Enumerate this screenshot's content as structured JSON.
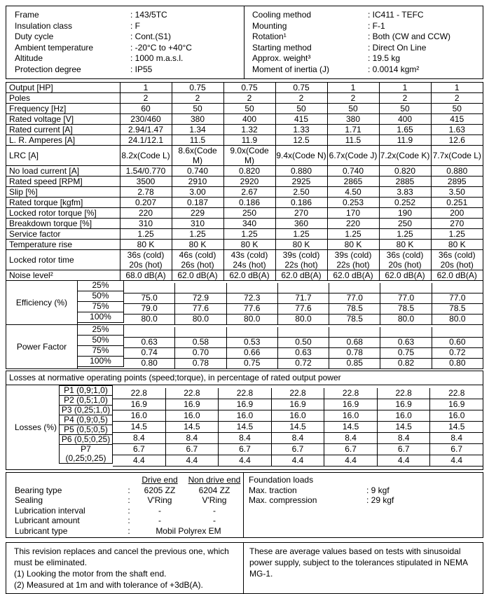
{
  "info_top": {
    "left": [
      {
        "label": "Frame",
        "value": ": 143/5TC"
      },
      {
        "label": "Insulation class",
        "value": ": F"
      },
      {
        "label": "Duty cycle",
        "value": ": Cont.(S1)"
      },
      {
        "label": "Ambient temperature",
        "value": ": -20°C to +40°C"
      },
      {
        "label": "Altitude",
        "value": ": 1000 m.a.s.l."
      },
      {
        "label": "Protection degree",
        "value": ": IP55"
      }
    ],
    "right": [
      {
        "label": "Cooling method",
        "value": ": IC411 - TEFC"
      },
      {
        "label": "Mounting",
        "value": ": F-1"
      },
      {
        "label": "Rotation¹",
        "value": ": Both (CW and CCW)"
      },
      {
        "label": "Starting method",
        "value": ": Direct On Line"
      },
      {
        "label": "Approx. weight³",
        "value": ": 19.5 kg"
      },
      {
        "label": "Moment of inertia (J)",
        "value": ": 0.0014 kgm²"
      }
    ]
  },
  "spec_table": {
    "rows": [
      {
        "label": "Output [HP]",
        "values": [
          "1",
          "0.75",
          "0.75",
          "0.75",
          "1",
          "1",
          "1"
        ]
      },
      {
        "label": "Poles",
        "values": [
          "2",
          "2",
          "2",
          "2",
          "2",
          "2",
          "2"
        ]
      },
      {
        "label": "Frequency [Hz]",
        "values": [
          "60",
          "50",
          "50",
          "50",
          "50",
          "50",
          "50"
        ]
      },
      {
        "label": "Rated voltage [V]",
        "values": [
          "230/460",
          "380",
          "400",
          "415",
          "380",
          "400",
          "415"
        ]
      },
      {
        "label": "Rated current [A]",
        "values": [
          "2.94/1.47",
          "1.34",
          "1.32",
          "1.33",
          "1.71",
          "1.65",
          "1.63"
        ]
      },
      {
        "label": "L. R. Amperes [A]",
        "values": [
          "24.1/12.1",
          "11.5",
          "11.9",
          "12.5",
          "11.5",
          "11.9",
          "12.6"
        ]
      },
      {
        "label": "LRC [A]",
        "values": [
          "8.2x(Code L)",
          "8.6x(Code\nM)",
          "9.0x(Code\nM)",
          "9.4x(Code N)",
          "6.7x(Code J)",
          "7.2x(Code K)",
          "7.7x(Code L)"
        ]
      },
      {
        "label": "No load current [A]",
        "values": [
          "1.54/0.770",
          "0.740",
          "0.820",
          "0.880",
          "0.740",
          "0.820",
          "0.880"
        ]
      },
      {
        "label": "Rated speed [RPM]",
        "values": [
          "3500",
          "2910",
          "2920",
          "2925",
          "2865",
          "2885",
          "2895"
        ]
      },
      {
        "label": "Slip [%]",
        "values": [
          "2.78",
          "3.00",
          "2.67",
          "2.50",
          "4.50",
          "3.83",
          "3.50"
        ]
      },
      {
        "label": "Rated torque [kgfm]",
        "values": [
          "0.207",
          "0.187",
          "0.186",
          "0.186",
          "0.253",
          "0.252",
          "0.251"
        ]
      },
      {
        "label": "Locked rotor torque [%]",
        "values": [
          "220",
          "229",
          "250",
          "270",
          "170",
          "190",
          "200"
        ]
      },
      {
        "label": "Breakdown torque [%]",
        "values": [
          "310",
          "310",
          "340",
          "360",
          "220",
          "250",
          "270"
        ]
      },
      {
        "label": "Service factor",
        "values": [
          "1.25",
          "1.25",
          "1.25",
          "1.25",
          "1.25",
          "1.25",
          "1.25"
        ]
      },
      {
        "label": "Temperature rise",
        "values": [
          "80 K",
          "80 K",
          "80 K",
          "80 K",
          "80 K",
          "80 K",
          "80 K"
        ]
      },
      {
        "label": "Locked rotor time",
        "values": [
          "36s (cold)\n20s (hot)",
          "46s (cold)\n26s (hot)",
          "43s (cold)\n24s (hot)",
          "39s (cold)\n22s (hot)",
          "39s (cold)\n22s (hot)",
          "36s (cold)\n20s (hot)",
          "36s (cold)\n20s (hot)"
        ]
      },
      {
        "label": "Noise level²",
        "values": [
          "68.0 dB(A)",
          "62.0 dB(A)",
          "62.0 dB(A)",
          "62.0 dB(A)",
          "62.0 dB(A)",
          "62.0 dB(A)",
          "62.0 dB(A)"
        ]
      }
    ]
  },
  "performance": {
    "groups": [
      {
        "key": "efficiency",
        "label": "Efficiency (%)",
        "loads": [
          "25%",
          "50%",
          "75%",
          "100%"
        ],
        "rows": [
          [
            "",
            "",
            "",
            "",
            "",
            "",
            ""
          ],
          [
            "75.0",
            "72.9",
            "72.3",
            "71.7",
            "77.0",
            "77.0",
            "77.0"
          ],
          [
            "79.0",
            "77.6",
            "77.6",
            "77.6",
            "78.5",
            "78.5",
            "78.5"
          ],
          [
            "80.0",
            "80.0",
            "80.0",
            "80.0",
            "78.5",
            "80.0",
            "80.0"
          ]
        ]
      },
      {
        "key": "power-factor",
        "label": "Power Factor",
        "loads": [
          "25%",
          "50%",
          "75%",
          "100%"
        ],
        "rows": [
          [
            "",
            "",
            "",
            "",
            "",
            "",
            ""
          ],
          [
            "0.63",
            "0.58",
            "0.53",
            "0.50",
            "0.68",
            "0.63",
            "0.60"
          ],
          [
            "0.74",
            "0.70",
            "0.66",
            "0.63",
            "0.78",
            "0.75",
            "0.72"
          ],
          [
            "0.80",
            "0.78",
            "0.75",
            "0.72",
            "0.85",
            "0.82",
            "0.80"
          ]
        ]
      }
    ]
  },
  "losses": {
    "title": "Losses at normative operating points (speed;torque), in percentage of rated output power",
    "group_label": "Losses (%)",
    "points": [
      "P1 (0,9;1,0)",
      "P2 (0,5;1,0)",
      "P3 (0,25;1,0)",
      "P4 (0,9;0,5)",
      "P5 (0,5;0,5)",
      "P6 (0,5;0,25)",
      "P7\n(0,25;0,25)"
    ],
    "rows": [
      [
        "22.8",
        "22.8",
        "22.8",
        "22.8",
        "22.8",
        "22.8",
        "22.8"
      ],
      [
        "16.9",
        "16.9",
        "16.9",
        "16.9",
        "16.9",
        "16.9",
        "16.9"
      ],
      [
        "16.0",
        "16.0",
        "16.0",
        "16.0",
        "16.0",
        "16.0",
        "16.0"
      ],
      [
        "14.5",
        "14.5",
        "14.5",
        "14.5",
        "14.5",
        "14.5",
        "14.5"
      ],
      [
        "8.4",
        "8.4",
        "8.4",
        "8.4",
        "8.4",
        "8.4",
        "8.4"
      ],
      [
        "6.7",
        "6.7",
        "6.7",
        "6.7",
        "6.7",
        "6.7",
        "6.7"
      ],
      [
        "4.4",
        "4.4",
        "4.4",
        "4.4",
        "4.4",
        "4.4",
        "4.4"
      ]
    ]
  },
  "bearings": {
    "drive_end_header": "Drive end",
    "non_drive_end_header": "Non drive end",
    "rows": [
      {
        "label": "Bearing type",
        "colon": ":",
        "values": [
          "6205 ZZ",
          "6204 ZZ"
        ]
      },
      {
        "label": "Sealing",
        "colon": ":",
        "values": [
          "V'Ring",
          "V'Ring"
        ]
      },
      {
        "label": "Lubrication interval",
        "colon": ":",
        "values": [
          "-",
          "-"
        ]
      },
      {
        "label": "Lubricant amount",
        "colon": ":",
        "values": [
          "-",
          "-"
        ]
      },
      {
        "label": "Lubricant type",
        "colon": ":",
        "span": "Mobil Polyrex EM"
      }
    ]
  },
  "foundation": {
    "title": "Foundation loads",
    "rows": [
      {
        "label": "Max. traction",
        "value": ": 9 kgf"
      },
      {
        "label": "Max. compression",
        "value": ": 29 kgf"
      }
    ]
  },
  "footer": {
    "left_lines": [
      "This revision replaces and cancel the previous one, which must be eliminated.",
      "(1) Looking the motor from the shaft end.",
      "(2) Measured at 1m and with tolerance of +3dB(A)."
    ],
    "right_text": "These are average values based on tests with sinusoidal power supply, subject to the tolerances stipulated in NEMA MG-1."
  }
}
